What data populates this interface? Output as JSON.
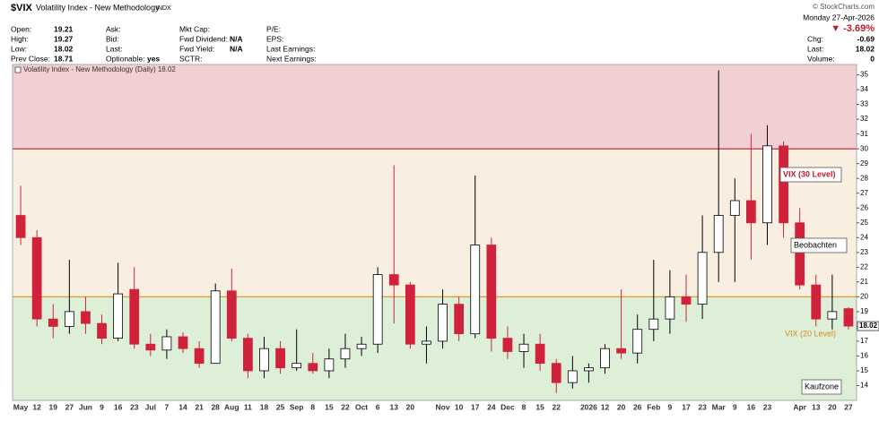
{
  "header": {
    "symbol": "$VIX",
    "name": "Volatility Index - New Methodology",
    "exchange": "INDX",
    "copyright": "© StockCharts.com",
    "date": "Monday  27-Apr-2026",
    "change_pct": "▼ -3.69%",
    "fields": [
      [
        {
          "label": "Open:",
          "value": "19.21"
        },
        {
          "label": "High:",
          "value": "19.27"
        },
        {
          "label": "Low:",
          "value": "18.02"
        },
        {
          "label": "Prev Close:",
          "value": "18.71"
        }
      ],
      [
        {
          "label": "Ask:"
        },
        {
          "label": "Bid:"
        },
        {
          "label": "Last:"
        },
        {
          "label": "Optionable:",
          "value": "yes"
        }
      ],
      [
        {
          "label": "Mkt Cap:"
        },
        {
          "label": "Fwd Dividend:",
          "value": "N/A"
        },
        {
          "label": "Fwd Yield:",
          "value": "N/A"
        },
        {
          "label": "SCTR:"
        }
      ],
      [
        {
          "label": "P/E:"
        },
        {
          "label": "EPS:"
        },
        {
          "label": "Last Earnings:"
        },
        {
          "label": "Next Earnings:"
        }
      ]
    ],
    "right_fields": [
      {
        "label": "Chg:",
        "value": "-0.69"
      },
      {
        "label": "Last:",
        "value": "18.02"
      },
      {
        "label": "Volume:",
        "value": "0"
      }
    ]
  },
  "chart_data": {
    "type": "candlestick",
    "legend": "Volatility Index - New Methodology (Daily) 18.02",
    "last_label": "18.02",
    "up_color": "#ffffff",
    "down_color": "#d0223a",
    "ylim": [
      13,
      35.7
    ],
    "yticks": [
      14,
      15,
      16,
      17,
      18,
      19,
      20,
      21,
      22,
      23,
      24,
      25,
      26,
      27,
      28,
      29,
      30,
      31,
      32,
      33,
      34,
      35
    ],
    "bands": [
      {
        "from": 30,
        "to": 35.7,
        "color": "#f2cfd3"
      },
      {
        "from": 20,
        "to": 30,
        "color": "#f8efe1"
      },
      {
        "from": 13,
        "to": 20,
        "color": "#deefd8"
      }
    ],
    "levels": [
      {
        "value": 30,
        "color": "#c0192e"
      },
      {
        "value": 20,
        "color": "#d99a2b"
      }
    ],
    "annotations": [
      "VIX (30 Level)",
      "Beobachten",
      "VIX (20 Level)",
      "Kaufzone"
    ],
    "categories": [
      "May",
      "12",
      "19",
      "27",
      "Jun",
      "9",
      "16",
      "23",
      "Jul",
      "7",
      "14",
      "21",
      "28",
      "Aug",
      "11",
      "18",
      "25",
      "Sep",
      "8",
      "15",
      "22",
      "Oct",
      "6",
      "13",
      "20",
      null,
      "Nov",
      "10",
      "17",
      "24",
      "Dec",
      "8",
      "15",
      "22",
      null,
      "2026",
      "12",
      "20",
      "26",
      "Feb",
      "9",
      "17",
      "23",
      "Mar",
      "9",
      "16",
      "23",
      null,
      "Apr",
      "13",
      "20",
      "27"
    ],
    "open": [
      25.5,
      24,
      18.5,
      18,
      19,
      18.2,
      17.2,
      20.5,
      16.8,
      16.4,
      17.3,
      16.5,
      15.5,
      20.4,
      17.2,
      15,
      16.5,
      15.2,
      15.5,
      15,
      15.8,
      16.5,
      16.8,
      21.5,
      20.8,
      16.8,
      17,
      19.5,
      17.5,
      23.5,
      17.2,
      16.3,
      16.8,
      15.5,
      14.2,
      15,
      15.2,
      16.5,
      16.2,
      17.8,
      18.5,
      20,
      19.5,
      23,
      25.5,
      26.5,
      25,
      30.2,
      25,
      20.8,
      18.5,
      19.2
    ],
    "high": [
      27.5,
      24.5,
      19.5,
      22.5,
      20,
      18.8,
      22.3,
      22,
      17.5,
      17.8,
      17.6,
      17,
      20.9,
      21.9,
      17.5,
      17.3,
      17,
      17.8,
      16.2,
      16.5,
      17.5,
      17.3,
      22,
      28.9,
      21,
      18,
      20.5,
      20,
      28.2,
      24,
      18,
      17.5,
      17.5,
      15.8,
      16,
      15.5,
      16.8,
      20.5,
      18.8,
      22.5,
      21.8,
      21.5,
      25.5,
      35.3,
      28,
      31,
      31.6,
      30.5,
      26,
      21.5,
      21.5,
      19.3
    ],
    "low": [
      23.5,
      18,
      17.2,
      17.5,
      17.5,
      16.8,
      17,
      16.5,
      16,
      15.8,
      16.2,
      15.2,
      15.5,
      17,
      14.5,
      14.5,
      14.8,
      15,
      14.8,
      14.5,
      15.2,
      16,
      16.2,
      18.2,
      16.5,
      15.5,
      16.5,
      17,
      17.2,
      16.3,
      15.8,
      15.2,
      15,
      13.5,
      13.8,
      14.2,
      14.8,
      15.8,
      15.5,
      17,
      17.5,
      18.3,
      18.5,
      21,
      21,
      22.5,
      23.5,
      24,
      20.5,
      18,
      17.8,
      17.8
    ],
    "close": [
      24,
      18.5,
      18,
      19,
      18.2,
      17.2,
      20.2,
      16.8,
      16.4,
      17.3,
      16.5,
      15.5,
      20.4,
      17.2,
      15,
      16.5,
      15.2,
      15.5,
      15,
      15.8,
      16.5,
      16.8,
      21.5,
      20.8,
      16.8,
      17,
      19.5,
      17.5,
      23.5,
      17.2,
      16.3,
      16.8,
      15.5,
      14.2,
      15,
      15.2,
      16.5,
      16.2,
      17.8,
      18.5,
      20,
      19.5,
      23,
      25.5,
      26.5,
      25,
      30.2,
      25,
      20.8,
      18.5,
      19,
      18.02
    ]
  }
}
